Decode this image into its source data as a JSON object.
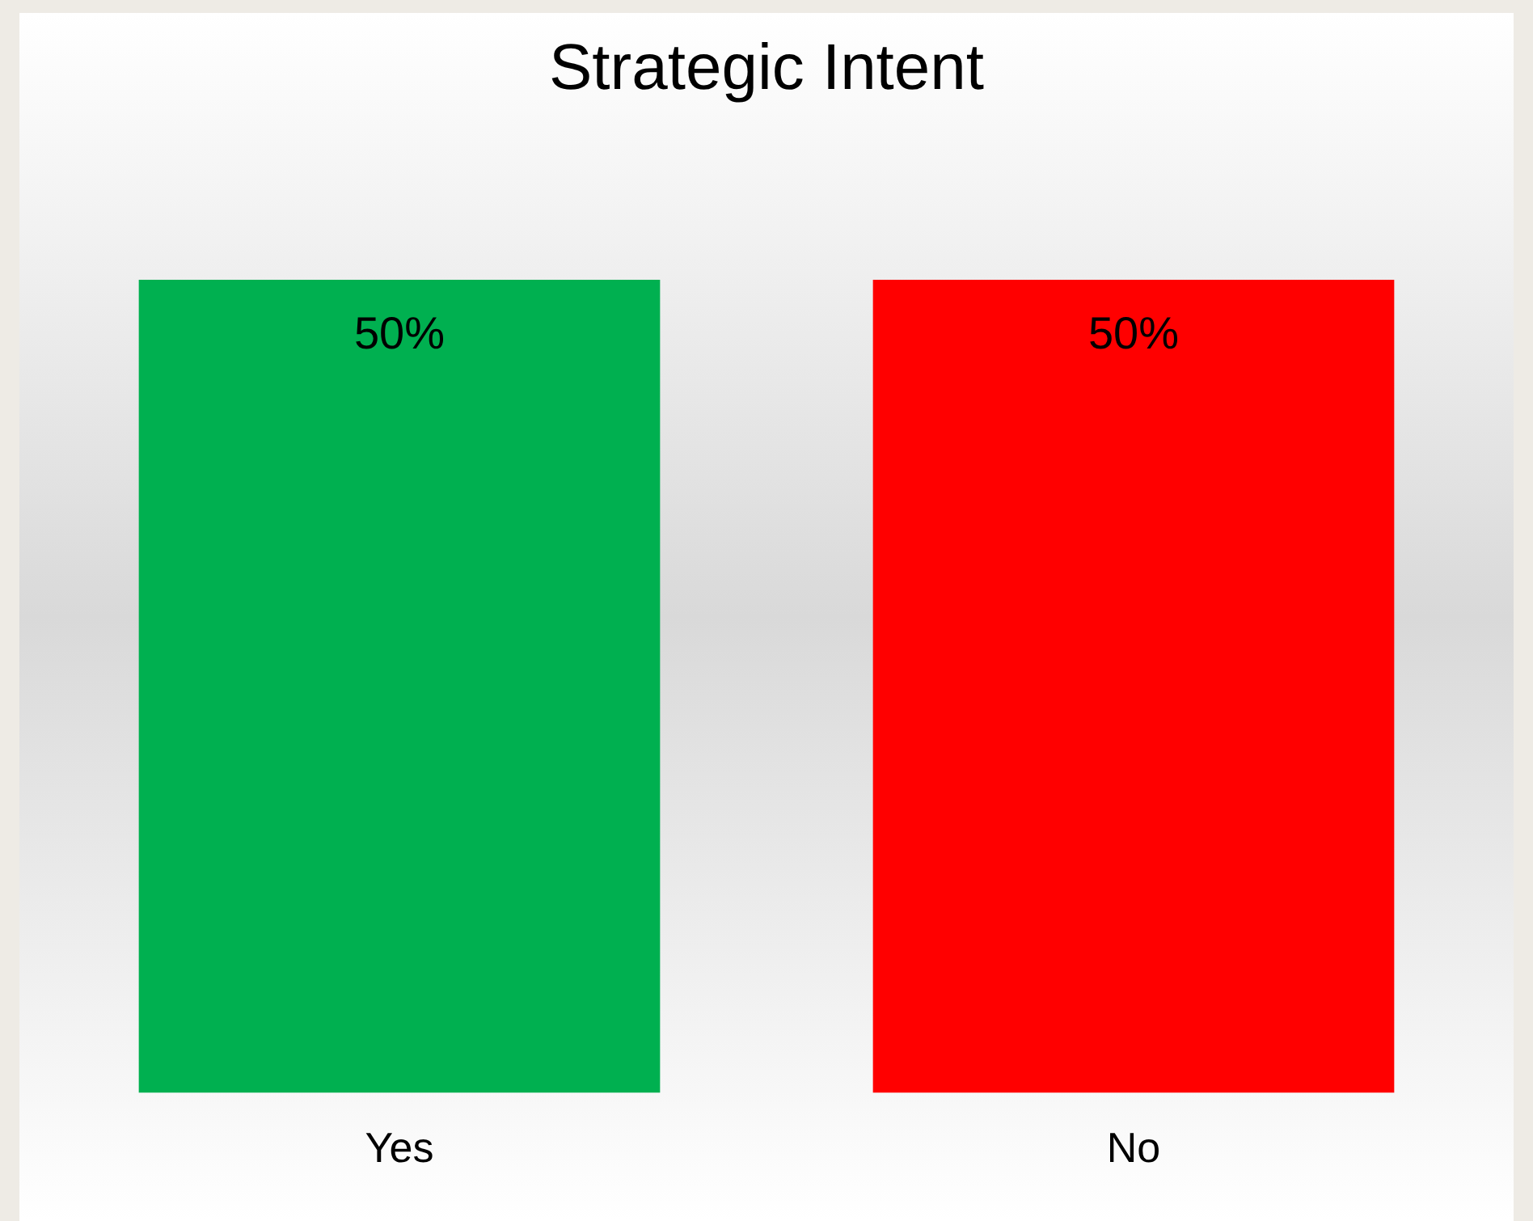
{
  "chart_data": {
    "type": "bar",
    "title": "Strategic Intent",
    "categories": [
      "Yes",
      "No"
    ],
    "values": [
      50,
      50
    ],
    "colors": [
      "#00b050",
      "#ff0000"
    ],
    "value_labels": [
      "50%",
      "50%"
    ],
    "grid": false,
    "legend": false
  }
}
